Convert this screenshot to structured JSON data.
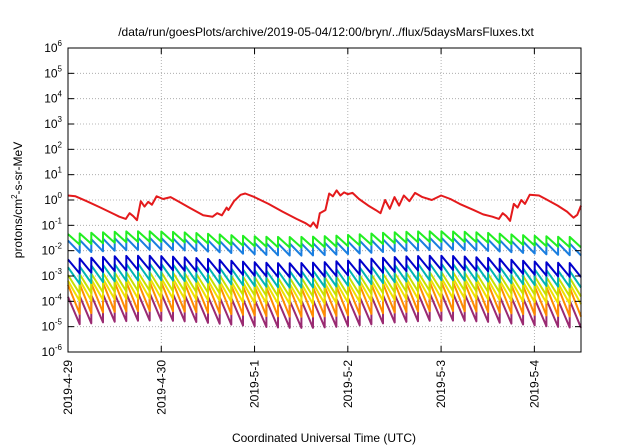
{
  "chart_data": {
    "type": "line",
    "title": "/data/run/goesPlots/archive/2019-05-04/12:00/bryn/../flux/5daysMarsFluxes.txt",
    "xlabel": "Coordinated Universal Time (UTC)",
    "ylabel_parts": {
      "pre": "protons/cm",
      "sup": "2",
      "post": "-s-sr-MeV"
    },
    "yscale": "log",
    "ylim": [
      1e-06,
      1000000.0
    ],
    "y_ticks": [
      {
        "base": "10",
        "exp": "-6",
        "value": 1e-06
      },
      {
        "base": "10",
        "exp": "-5",
        "value": 1e-05
      },
      {
        "base": "10",
        "exp": "-4",
        "value": 0.0001
      },
      {
        "base": "10",
        "exp": "-3",
        "value": 0.001
      },
      {
        "base": "10",
        "exp": "-2",
        "value": 0.01
      },
      {
        "base": "10",
        "exp": "-1",
        "value": 0.1
      },
      {
        "base": "10",
        "exp": "0",
        "value": 1
      },
      {
        "base": "10",
        "exp": "1",
        "value": 10
      },
      {
        "base": "10",
        "exp": "2",
        "value": 100
      },
      {
        "base": "10",
        "exp": "3",
        "value": 1000
      },
      {
        "base": "10",
        "exp": "4",
        "value": 10000
      },
      {
        "base": "10",
        "exp": "5",
        "value": 100000
      },
      {
        "base": "10",
        "exp": "6",
        "value": 1000000
      }
    ],
    "x_range_days": [
      0,
      5.5
    ],
    "x_ticks": [
      {
        "label": "2019-4-29",
        "day": 0
      },
      {
        "label": "2019-4-30",
        "day": 1
      },
      {
        "label": "2019-5-1",
        "day": 2
      },
      {
        "label": "2019-5-2",
        "day": 3
      },
      {
        "label": "2019-5-3",
        "day": 4
      },
      {
        "label": "2019-5-4",
        "day": 5
      }
    ],
    "grid": true,
    "sawtooth_period_days": 0.125,
    "series": [
      {
        "color": "#e41a1c",
        "points": [
          [
            0.0,
            1.5
          ],
          [
            0.08,
            1.4
          ],
          [
            0.2,
            0.9
          ],
          [
            0.35,
            0.5
          ],
          [
            0.5,
            0.27
          ],
          [
            0.55,
            0.22
          ],
          [
            0.62,
            0.18
          ],
          [
            0.66,
            0.3
          ],
          [
            0.7,
            0.23
          ],
          [
            0.74,
            0.16
          ],
          [
            0.78,
            0.9
          ],
          [
            0.82,
            0.55
          ],
          [
            0.86,
            0.85
          ],
          [
            0.9,
            0.65
          ],
          [
            0.95,
            1.4
          ],
          [
            1.02,
            1.1
          ],
          [
            1.1,
            1.3
          ],
          [
            1.18,
            0.9
          ],
          [
            1.3,
            0.5
          ],
          [
            1.45,
            0.25
          ],
          [
            1.55,
            0.22
          ],
          [
            1.6,
            0.3
          ],
          [
            1.65,
            0.25
          ],
          [
            1.7,
            0.5
          ],
          [
            1.72,
            0.4
          ],
          [
            1.78,
            0.9
          ],
          [
            1.85,
            1.6
          ],
          [
            1.9,
            1.8
          ],
          [
            2.0,
            1.3
          ],
          [
            2.15,
            0.7
          ],
          [
            2.3,
            0.35
          ],
          [
            2.45,
            0.18
          ],
          [
            2.55,
            0.12
          ],
          [
            2.6,
            0.09
          ],
          [
            2.63,
            0.13
          ],
          [
            2.67,
            0.08
          ],
          [
            2.7,
            0.3
          ],
          [
            2.76,
            0.4
          ],
          [
            2.8,
            1.8
          ],
          [
            2.84,
            1.4
          ],
          [
            2.88,
            2.4
          ],
          [
            2.92,
            1.5
          ],
          [
            2.96,
            2.0
          ],
          [
            3.0,
            1.7
          ],
          [
            3.05,
            1.9
          ],
          [
            3.12,
            1.1
          ],
          [
            3.22,
            0.6
          ],
          [
            3.3,
            0.4
          ],
          [
            3.35,
            0.3
          ],
          [
            3.4,
            1.0
          ],
          [
            3.45,
            0.45
          ],
          [
            3.5,
            1.3
          ],
          [
            3.55,
            0.6
          ],
          [
            3.6,
            1.5
          ],
          [
            3.66,
            0.9
          ],
          [
            3.72,
            1.9
          ],
          [
            3.8,
            1.3
          ],
          [
            3.9,
            1.0
          ],
          [
            4.0,
            1.5
          ],
          [
            4.1,
            1.1
          ],
          [
            4.2,
            0.7
          ],
          [
            4.35,
            0.4
          ],
          [
            4.45,
            0.27
          ],
          [
            4.55,
            0.22
          ],
          [
            4.62,
            0.18
          ],
          [
            4.66,
            0.3
          ],
          [
            4.7,
            0.23
          ],
          [
            4.74,
            0.15
          ],
          [
            4.78,
            0.7
          ],
          [
            4.82,
            0.5
          ],
          [
            4.86,
            1.0
          ],
          [
            4.9,
            0.7
          ],
          [
            4.95,
            1.6
          ],
          [
            5.05,
            1.5
          ],
          [
            5.12,
            1.1
          ],
          [
            5.25,
            0.6
          ],
          [
            5.35,
            0.35
          ],
          [
            5.42,
            0.2
          ],
          [
            5.46,
            0.26
          ],
          [
            5.5,
            0.6
          ]
        ]
      },
      {
        "color": "#22ee22",
        "base": 0.045,
        "ratio": 2.6,
        "undulation": 1.3
      },
      {
        "color": "#1a7ee0",
        "base": 0.025,
        "ratio": 3.0,
        "undulation": 1.3
      },
      {
        "color": "#0000cc",
        "base": 0.0045,
        "ratio": 3.6,
        "undulation": 1.4
      },
      {
        "color": "#00b4b4",
        "base": 0.0022,
        "ratio": 4.5,
        "undulation": 1.4
      },
      {
        "color": "#c8e000",
        "base": 0.0011,
        "ratio": 5.5,
        "undulation": 1.3
      },
      {
        "color": "#f0e000",
        "base": 0.00065,
        "ratio": 6.5,
        "undulation": 1.3
      },
      {
        "color": "#ff8c00",
        "base": 0.00045,
        "ratio": 14.0,
        "undulation": 1.3
      },
      {
        "color": "#9a2a72",
        "base": 0.00015,
        "ratio": 12.0,
        "undulation": 1.4
      }
    ]
  }
}
